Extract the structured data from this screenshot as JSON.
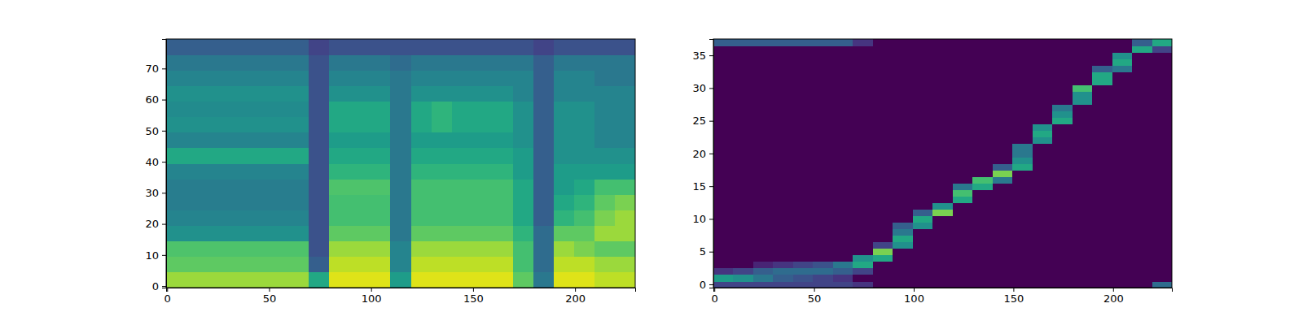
{
  "chart_data": [
    {
      "type": "heatmap",
      "color": "viridis",
      "zlim": [
        0,
        1
      ],
      "xlim": [
        -0.5,
        229.5
      ],
      "ylim": [
        -0.5,
        79.5
      ],
      "xticks": [
        0,
        50,
        100,
        150,
        200
      ],
      "yticks": [
        0,
        10,
        20,
        30,
        40,
        50,
        60,
        70
      ],
      "cells": [
        [
          0.85,
          0.85,
          0.85,
          0.85,
          0.85,
          0.85,
          0.85,
          0.6,
          0.95,
          0.95,
          0.95,
          0.55,
          0.95,
          0.95,
          0.95,
          0.95,
          0.95,
          0.75,
          0.4,
          0.95,
          0.95,
          0.9,
          0.9
        ],
        [
          0.75,
          0.75,
          0.75,
          0.75,
          0.75,
          0.75,
          0.75,
          0.3,
          0.9,
          0.9,
          0.9,
          0.45,
          0.9,
          0.9,
          0.9,
          0.9,
          0.9,
          0.7,
          0.35,
          0.9,
          0.9,
          0.85,
          0.85
        ],
        [
          0.72,
          0.72,
          0.72,
          0.72,
          0.72,
          0.72,
          0.72,
          0.25,
          0.85,
          0.85,
          0.85,
          0.45,
          0.85,
          0.85,
          0.85,
          0.85,
          0.85,
          0.7,
          0.35,
          0.85,
          0.8,
          0.75,
          0.75
        ],
        [
          0.5,
          0.5,
          0.5,
          0.5,
          0.5,
          0.5,
          0.5,
          0.25,
          0.75,
          0.75,
          0.75,
          0.4,
          0.75,
          0.75,
          0.75,
          0.75,
          0.75,
          0.65,
          0.35,
          0.75,
          0.75,
          0.85,
          0.85
        ],
        [
          0.45,
          0.45,
          0.45,
          0.45,
          0.45,
          0.45,
          0.45,
          0.25,
          0.7,
          0.7,
          0.7,
          0.4,
          0.7,
          0.7,
          0.7,
          0.7,
          0.7,
          0.6,
          0.3,
          0.65,
          0.7,
          0.8,
          0.85
        ],
        [
          0.42,
          0.42,
          0.42,
          0.42,
          0.42,
          0.42,
          0.42,
          0.25,
          0.7,
          0.7,
          0.7,
          0.4,
          0.7,
          0.7,
          0.7,
          0.7,
          0.7,
          0.6,
          0.3,
          0.6,
          0.65,
          0.75,
          0.8
        ],
        [
          0.42,
          0.42,
          0.42,
          0.42,
          0.42,
          0.42,
          0.42,
          0.25,
          0.72,
          0.72,
          0.72,
          0.4,
          0.7,
          0.7,
          0.7,
          0.7,
          0.7,
          0.6,
          0.3,
          0.55,
          0.6,
          0.7,
          0.7
        ],
        [
          0.45,
          0.45,
          0.45,
          0.45,
          0.45,
          0.45,
          0.45,
          0.25,
          0.65,
          0.65,
          0.65,
          0.4,
          0.65,
          0.65,
          0.65,
          0.65,
          0.65,
          0.55,
          0.3,
          0.55,
          0.55,
          0.55,
          0.55
        ],
        [
          0.6,
          0.6,
          0.6,
          0.6,
          0.6,
          0.6,
          0.6,
          0.25,
          0.6,
          0.6,
          0.6,
          0.4,
          0.6,
          0.6,
          0.6,
          0.6,
          0.6,
          0.55,
          0.3,
          0.5,
          0.5,
          0.5,
          0.5
        ],
        [
          0.45,
          0.45,
          0.45,
          0.45,
          0.45,
          0.45,
          0.45,
          0.25,
          0.55,
          0.55,
          0.55,
          0.4,
          0.55,
          0.55,
          0.55,
          0.55,
          0.55,
          0.5,
          0.3,
          0.5,
          0.5,
          0.45,
          0.45
        ],
        [
          0.5,
          0.5,
          0.5,
          0.5,
          0.5,
          0.5,
          0.5,
          0.25,
          0.6,
          0.6,
          0.6,
          0.4,
          0.6,
          0.65,
          0.6,
          0.6,
          0.6,
          0.5,
          0.3,
          0.5,
          0.5,
          0.45,
          0.45
        ],
        [
          0.48,
          0.48,
          0.48,
          0.48,
          0.48,
          0.48,
          0.48,
          0.25,
          0.6,
          0.6,
          0.6,
          0.4,
          0.6,
          0.65,
          0.6,
          0.6,
          0.6,
          0.5,
          0.3,
          0.5,
          0.5,
          0.45,
          0.45
        ],
        [
          0.5,
          0.5,
          0.5,
          0.5,
          0.5,
          0.5,
          0.5,
          0.25,
          0.5,
          0.5,
          0.5,
          0.4,
          0.5,
          0.5,
          0.5,
          0.5,
          0.5,
          0.45,
          0.3,
          0.45,
          0.45,
          0.45,
          0.45
        ],
        [
          0.45,
          0.45,
          0.45,
          0.45,
          0.45,
          0.45,
          0.45,
          0.25,
          0.45,
          0.45,
          0.45,
          0.4,
          0.45,
          0.45,
          0.45,
          0.45,
          0.45,
          0.45,
          0.3,
          0.45,
          0.45,
          0.4,
          0.4
        ],
        [
          0.4,
          0.4,
          0.4,
          0.4,
          0.4,
          0.4,
          0.4,
          0.25,
          0.4,
          0.4,
          0.4,
          0.35,
          0.4,
          0.4,
          0.4,
          0.4,
          0.4,
          0.4,
          0.3,
          0.4,
          0.4,
          0.4,
          0.4
        ],
        [
          0.3,
          0.3,
          0.3,
          0.3,
          0.3,
          0.3,
          0.3,
          0.2,
          0.25,
          0.25,
          0.25,
          0.25,
          0.25,
          0.25,
          0.25,
          0.25,
          0.25,
          0.25,
          0.2,
          0.25,
          0.25,
          0.25,
          0.25
        ]
      ]
    },
    {
      "type": "heatmap",
      "color": "viridis",
      "zlim": [
        0,
        1
      ],
      "xlim": [
        -0.5,
        229.5
      ],
      "ylim": [
        -0.5,
        37.5
      ],
      "xticks": [
        0,
        50,
        100,
        150,
        200
      ],
      "yticks": [
        0,
        5,
        10,
        15,
        20,
        25,
        30,
        35
      ],
      "cells": [
        [
          0.2,
          0.2,
          0.2,
          0.2,
          0.2,
          0.2,
          0.2,
          0.15,
          0,
          0,
          0,
          0,
          0,
          0,
          0,
          0,
          0,
          0,
          0,
          0,
          0,
          0,
          0.35
        ],
        [
          0.55,
          0.5,
          0.4,
          0.3,
          0.25,
          0.2,
          0.15,
          0,
          0,
          0,
          0,
          0,
          0,
          0,
          0,
          0,
          0,
          0,
          0,
          0,
          0,
          0,
          0
        ],
        [
          0.15,
          0.2,
          0.3,
          0.35,
          0.35,
          0.35,
          0.3,
          0.2,
          0,
          0,
          0,
          0,
          0,
          0,
          0,
          0,
          0,
          0,
          0,
          0,
          0,
          0,
          0
        ],
        [
          0,
          0,
          0.1,
          0.15,
          0.2,
          0.25,
          0.4,
          0.6,
          0,
          0,
          0,
          0,
          0,
          0,
          0,
          0,
          0,
          0,
          0,
          0,
          0,
          0,
          0
        ],
        [
          0,
          0,
          0,
          0,
          0,
          0,
          0,
          0.5,
          0.6,
          0,
          0,
          0,
          0,
          0,
          0,
          0,
          0,
          0,
          0,
          0,
          0,
          0,
          0
        ],
        [
          0,
          0,
          0,
          0,
          0,
          0,
          0,
          0,
          0.8,
          0,
          0,
          0,
          0,
          0,
          0,
          0,
          0,
          0,
          0,
          0,
          0,
          0,
          0
        ],
        [
          0,
          0,
          0,
          0,
          0,
          0,
          0,
          0,
          0.2,
          0.5,
          0,
          0,
          0,
          0,
          0,
          0,
          0,
          0,
          0,
          0,
          0,
          0,
          0
        ],
        [
          0,
          0,
          0,
          0,
          0,
          0,
          0,
          0,
          0,
          0.6,
          0,
          0,
          0,
          0,
          0,
          0,
          0,
          0,
          0,
          0,
          0,
          0,
          0
        ],
        [
          0,
          0,
          0,
          0,
          0,
          0,
          0,
          0,
          0,
          0.4,
          0,
          0,
          0,
          0,
          0,
          0,
          0,
          0,
          0,
          0,
          0,
          0,
          0
        ],
        [
          0,
          0,
          0,
          0,
          0,
          0,
          0,
          0,
          0,
          0.3,
          0.5,
          0,
          0,
          0,
          0,
          0,
          0,
          0,
          0,
          0,
          0,
          0,
          0
        ],
        [
          0,
          0,
          0,
          0,
          0,
          0,
          0,
          0,
          0,
          0,
          0.6,
          0,
          0,
          0,
          0,
          0,
          0,
          0,
          0,
          0,
          0,
          0,
          0
        ],
        [
          0,
          0,
          0,
          0,
          0,
          0,
          0,
          0,
          0,
          0,
          0.3,
          0.8,
          0,
          0,
          0,
          0,
          0,
          0,
          0,
          0,
          0,
          0,
          0
        ],
        [
          0,
          0,
          0,
          0,
          0,
          0,
          0,
          0,
          0,
          0,
          0,
          0.5,
          0,
          0,
          0,
          0,
          0,
          0,
          0,
          0,
          0,
          0,
          0
        ],
        [
          0,
          0,
          0,
          0,
          0,
          0,
          0,
          0,
          0,
          0,
          0,
          0,
          0.6,
          0,
          0,
          0,
          0,
          0,
          0,
          0,
          0,
          0,
          0
        ],
        [
          0,
          0,
          0,
          0,
          0,
          0,
          0,
          0,
          0,
          0,
          0,
          0,
          0.7,
          0,
          0,
          0,
          0,
          0,
          0,
          0,
          0,
          0,
          0
        ],
        [
          0,
          0,
          0,
          0,
          0,
          0,
          0,
          0,
          0,
          0,
          0,
          0,
          0.4,
          0.6,
          0,
          0,
          0,
          0,
          0,
          0,
          0,
          0,
          0
        ],
        [
          0,
          0,
          0,
          0,
          0,
          0,
          0,
          0,
          0,
          0,
          0,
          0,
          0,
          0.7,
          0.4,
          0,
          0,
          0,
          0,
          0,
          0,
          0,
          0
        ],
        [
          0,
          0,
          0,
          0,
          0,
          0,
          0,
          0,
          0,
          0,
          0,
          0,
          0,
          0,
          0.8,
          0,
          0,
          0,
          0,
          0,
          0,
          0,
          0
        ],
        [
          0,
          0,
          0,
          0,
          0,
          0,
          0,
          0,
          0,
          0,
          0,
          0,
          0,
          0,
          0.3,
          0.6,
          0,
          0,
          0,
          0,
          0,
          0,
          0
        ],
        [
          0,
          0,
          0,
          0,
          0,
          0,
          0,
          0,
          0,
          0,
          0,
          0,
          0,
          0,
          0,
          0.5,
          0,
          0,
          0,
          0,
          0,
          0,
          0
        ],
        [
          0,
          0,
          0,
          0,
          0,
          0,
          0,
          0,
          0,
          0,
          0,
          0,
          0,
          0,
          0,
          0.4,
          0,
          0,
          0,
          0,
          0,
          0,
          0
        ],
        [
          0,
          0,
          0,
          0,
          0,
          0,
          0,
          0,
          0,
          0,
          0,
          0,
          0,
          0,
          0,
          0.4,
          0,
          0,
          0,
          0,
          0,
          0,
          0
        ],
        [
          0,
          0,
          0,
          0,
          0,
          0,
          0,
          0,
          0,
          0,
          0,
          0,
          0,
          0,
          0,
          0,
          0.5,
          0,
          0,
          0,
          0,
          0,
          0
        ],
        [
          0,
          0,
          0,
          0,
          0,
          0,
          0,
          0,
          0,
          0,
          0,
          0,
          0,
          0,
          0,
          0,
          0.6,
          0,
          0,
          0,
          0,
          0,
          0
        ],
        [
          0,
          0,
          0,
          0,
          0,
          0,
          0,
          0,
          0,
          0,
          0,
          0,
          0,
          0,
          0,
          0,
          0.5,
          0,
          0,
          0,
          0,
          0,
          0
        ],
        [
          0,
          0,
          0,
          0,
          0,
          0,
          0,
          0,
          0,
          0,
          0,
          0,
          0,
          0,
          0,
          0,
          0,
          0.6,
          0,
          0,
          0,
          0,
          0
        ],
        [
          0,
          0,
          0,
          0,
          0,
          0,
          0,
          0,
          0,
          0,
          0,
          0,
          0,
          0,
          0,
          0,
          0,
          0.5,
          0,
          0,
          0,
          0,
          0
        ],
        [
          0,
          0,
          0,
          0,
          0,
          0,
          0,
          0,
          0,
          0,
          0,
          0,
          0,
          0,
          0,
          0,
          0,
          0.4,
          0,
          0,
          0,
          0,
          0
        ],
        [
          0,
          0,
          0,
          0,
          0,
          0,
          0,
          0,
          0,
          0,
          0,
          0,
          0,
          0,
          0,
          0,
          0,
          0,
          0.5,
          0,
          0,
          0,
          0
        ],
        [
          0,
          0,
          0,
          0,
          0,
          0,
          0,
          0,
          0,
          0,
          0,
          0,
          0,
          0,
          0,
          0,
          0,
          0,
          0.5,
          0,
          0,
          0,
          0
        ],
        [
          0,
          0,
          0,
          0,
          0,
          0,
          0,
          0,
          0,
          0,
          0,
          0,
          0,
          0,
          0,
          0,
          0,
          0,
          0.7,
          0,
          0,
          0,
          0
        ],
        [
          0,
          0,
          0,
          0,
          0,
          0,
          0,
          0,
          0,
          0,
          0,
          0,
          0,
          0,
          0,
          0,
          0,
          0,
          0,
          0.6,
          0,
          0,
          0
        ],
        [
          0,
          0,
          0,
          0,
          0,
          0,
          0,
          0,
          0,
          0,
          0,
          0,
          0,
          0,
          0,
          0,
          0,
          0,
          0,
          0.6,
          0,
          0,
          0
        ],
        [
          0,
          0,
          0,
          0,
          0,
          0,
          0,
          0,
          0,
          0,
          0,
          0,
          0,
          0,
          0,
          0,
          0,
          0,
          0,
          0.3,
          0.4,
          0,
          0
        ],
        [
          0,
          0,
          0,
          0,
          0,
          0,
          0,
          0,
          0,
          0,
          0,
          0,
          0,
          0,
          0,
          0,
          0,
          0,
          0,
          0,
          0.6,
          0,
          0
        ],
        [
          0,
          0,
          0,
          0,
          0,
          0,
          0,
          0,
          0,
          0,
          0,
          0,
          0,
          0,
          0,
          0,
          0,
          0,
          0,
          0,
          0.5,
          0,
          0
        ],
        [
          0,
          0,
          0,
          0,
          0,
          0,
          0,
          0,
          0,
          0,
          0,
          0,
          0,
          0,
          0,
          0,
          0,
          0,
          0,
          0,
          0,
          0.6,
          0.2
        ],
        [
          0.3,
          0.3,
          0.3,
          0.3,
          0.3,
          0.3,
          0.3,
          0.15,
          0,
          0,
          0,
          0,
          0,
          0,
          0,
          0,
          0,
          0,
          0,
          0,
          0,
          0.3,
          0.6
        ]
      ]
    }
  ]
}
